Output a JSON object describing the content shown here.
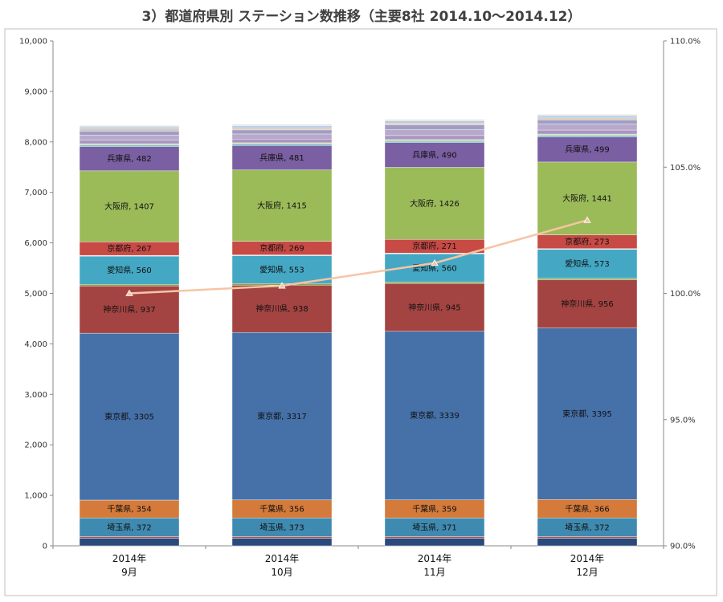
{
  "chart_data": {
    "type": "bar",
    "stacked": true,
    "title": "3）都道府県別 ステーション数推移（主要8社 2014.10～2014.12）",
    "categories": [
      [
        "2014年",
        "9月"
      ],
      [
        "2014年",
        "10月"
      ],
      [
        "2014年",
        "11月"
      ],
      [
        "2014年",
        "12月"
      ]
    ],
    "ylim": [
      0,
      10000
    ],
    "y_ticks": [
      "0",
      "1,000",
      "2,000",
      "3,000",
      "4,000",
      "5,000",
      "6,000",
      "7,000",
      "8,000",
      "9,000",
      "10,000"
    ],
    "y2lim": [
      90.0,
      110.0
    ],
    "y2_ticks": [
      "90.0%",
      "95.0%",
      "100.0%",
      "105.0%",
      "110.0%"
    ],
    "grid": false,
    "series": [
      {
        "name": "",
        "color": "#2a4a7c",
        "values": [
          150,
          150,
          150,
          150
        ]
      },
      {
        "name": "",
        "color": "#b44a48",
        "values": [
          30,
          30,
          30,
          30
        ]
      },
      {
        "name": "埼玉県",
        "color": "#3f8ab0",
        "values": [
          372,
          373,
          371,
          372
        ]
      },
      {
        "name": "千葉県",
        "color": "#d47a3a",
        "values": [
          354,
          356,
          359,
          366
        ]
      },
      {
        "name": "東京都",
        "color": "#4571a8",
        "values": [
          3305,
          3317,
          3339,
          3395
        ]
      },
      {
        "name": "神奈川県",
        "color": "#a44442",
        "values": [
          937,
          938,
          945,
          956
        ]
      },
      {
        "name": "",
        "color": "#86a54a",
        "values": [
          30,
          30,
          30,
          30
        ]
      },
      {
        "name": "愛知県",
        "color": "#44a8c4",
        "values": [
          560,
          553,
          560,
          573
        ]
      },
      {
        "name": "",
        "color": "#e6e6e6",
        "values": [
          15,
          15,
          15,
          15
        ]
      },
      {
        "name": "京都府",
        "color": "#c74a45",
        "values": [
          267,
          269,
          271,
          273
        ]
      },
      {
        "name": "大阪府",
        "color": "#9bbb59",
        "values": [
          1407,
          1415,
          1426,
          1441
        ]
      },
      {
        "name": "兵庫県",
        "color": "#7a5fa2",
        "values": [
          482,
          481,
          490,
          499
        ]
      },
      {
        "name": "",
        "color": "#4bacc6",
        "values": [
          25,
          25,
          25,
          25
        ]
      },
      {
        "name": "",
        "color": "#c9d6a6",
        "values": [
          30,
          30,
          35,
          30
        ]
      },
      {
        "name": "",
        "color": "#a997c1",
        "values": [
          70,
          75,
          80,
          80
        ]
      },
      {
        "name": "",
        "color": "#b8a9cc",
        "values": [
          100,
          100,
          120,
          120
        ]
      },
      {
        "name": "",
        "color": "#9e9ec4",
        "values": [
          80,
          80,
          90,
          80
        ]
      },
      {
        "name": "",
        "color": "#d9c4b9",
        "values": [
          40,
          40,
          40,
          40
        ]
      },
      {
        "name": "",
        "color": "#b5c9e3",
        "values": [
          40,
          40,
          40,
          40
        ]
      },
      {
        "name": "",
        "color": "#e0e0e0",
        "values": [
          30,
          30,
          30,
          30
        ]
      }
    ],
    "line_series": {
      "name": "",
      "axis": "right",
      "color": "#f7c4a5",
      "values": [
        100.0,
        100.3,
        101.2,
        102.9
      ]
    }
  }
}
